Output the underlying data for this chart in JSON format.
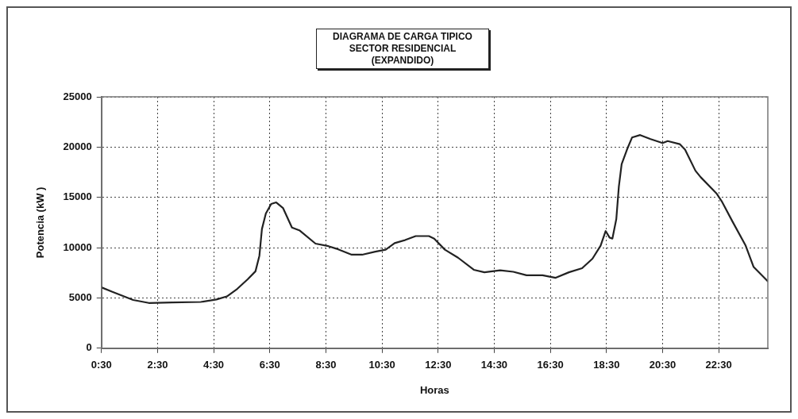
{
  "chart_data": {
    "type": "line",
    "title": "DIAGRAMA DE CARGA TIPICO\nSECTOR RESIDENCIAL\n(EXPANDIDO)",
    "xlabel": "Horas",
    "ylabel": "Potencia (kW )",
    "x": [
      0.5,
      0.89,
      1.63,
      2.19,
      3.02,
      4.04,
      4.6,
      4.97,
      5.34,
      5.71,
      5.99,
      6.13,
      6.22,
      6.36,
      6.55,
      6.73,
      6.97,
      7.29,
      7.57,
      8.13,
      8.59,
      8.87,
      9.42,
      9.79,
      10.26,
      10.63,
      10.95,
      11.32,
      11.7,
      12.17,
      12.36,
      12.74,
      13.21,
      13.77,
      14.15,
      14.71,
      15.18,
      15.65,
      16.22,
      16.69,
      17.16,
      17.63,
      18.0,
      18.29,
      18.47,
      18.61,
      18.71,
      18.85,
      18.94,
      19.04,
      19.23,
      19.41,
      19.7,
      20.07,
      20.5,
      20.68,
      21.11,
      21.3,
      21.67,
      21.86,
      22.42,
      22.61,
      22.99,
      23.46,
      23.74,
      24.25
    ],
    "series": [
      {
        "color": "#222222",
        "values": [
          6050,
          5600,
          4800,
          4500,
          4550,
          4600,
          4850,
          5150,
          5900,
          6850,
          7650,
          9200,
          11850,
          13400,
          14350,
          14500,
          13950,
          12000,
          11700,
          10400,
          10150,
          9900,
          9300,
          9300,
          9600,
          9800,
          10450,
          10750,
          11150,
          11150,
          10900,
          9800,
          9000,
          7800,
          7550,
          7750,
          7600,
          7250,
          7250,
          7000,
          7550,
          7950,
          8900,
          10200,
          11650,
          11000,
          10900,
          12850,
          16050,
          18300,
          19750,
          20950,
          21200,
          20800,
          20400,
          20600,
          20300,
          19750,
          17650,
          17000,
          15400,
          14600,
          12600,
          10200,
          8100,
          6650
        ]
      }
    ],
    "xlim": [
      0.5,
      24.25
    ],
    "xticks": [
      {
        "value": 0.5,
        "label": "0:30"
      },
      {
        "value": 2.5,
        "label": "2:30"
      },
      {
        "value": 4.5,
        "label": "4:30"
      },
      {
        "value": 6.5,
        "label": "6:30"
      },
      {
        "value": 8.5,
        "label": "8:30"
      },
      {
        "value": 10.5,
        "label": "10:30"
      },
      {
        "value": 12.5,
        "label": "12:30"
      },
      {
        "value": 14.5,
        "label": "14:30"
      },
      {
        "value": 16.5,
        "label": "16:30"
      },
      {
        "value": 18.5,
        "label": "18:30"
      },
      {
        "value": 20.5,
        "label": "20:30"
      },
      {
        "value": 22.5,
        "label": "22:30"
      }
    ],
    "ylim": [
      0,
      25000
    ],
    "yticks": [
      0,
      5000,
      10000,
      15000,
      20000,
      25000
    ],
    "grid": true,
    "marker": "none",
    "line_style": "solid"
  }
}
